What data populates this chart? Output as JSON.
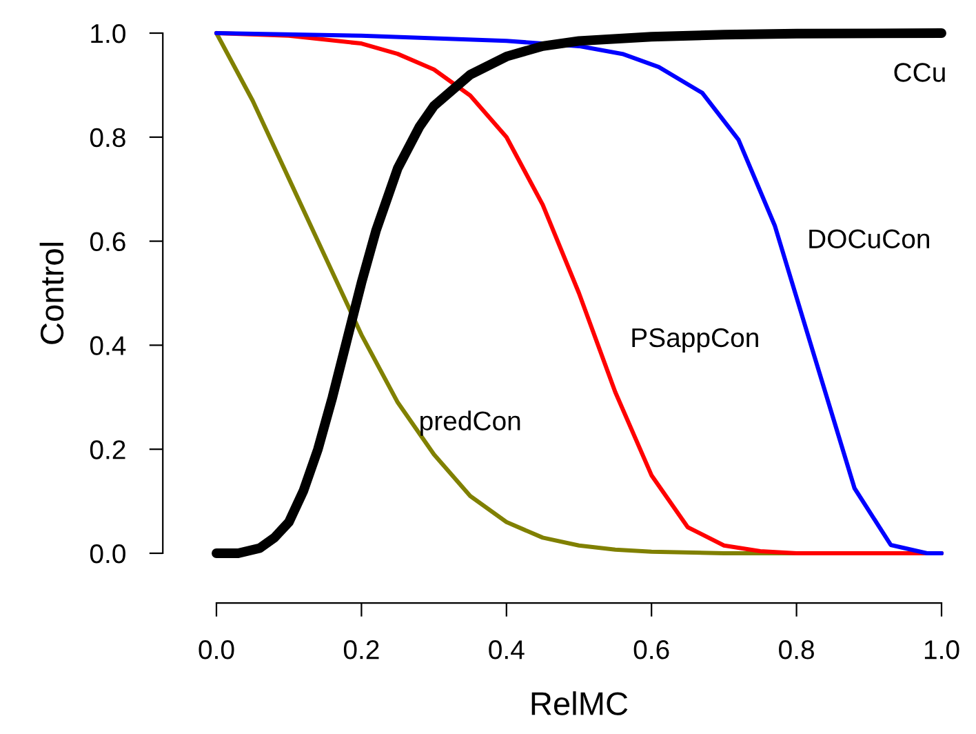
{
  "chart_data": {
    "type": "line",
    "xlabel": "RelMC",
    "ylabel": "Control",
    "xlim": [
      0,
      1
    ],
    "ylim": [
      0,
      1
    ],
    "xticks": [
      {
        "value": 0,
        "label": "0.0"
      },
      {
        "value": 0.2,
        "label": "0.2"
      },
      {
        "value": 0.4,
        "label": "0.4"
      },
      {
        "value": 0.6,
        "label": "0.6"
      },
      {
        "value": 0.8,
        "label": "0.8"
      },
      {
        "value": 1,
        "label": "1.0"
      }
    ],
    "yticks": [
      {
        "value": 0,
        "label": "0.0"
      },
      {
        "value": 0.2,
        "label": "0.2"
      },
      {
        "value": 0.4,
        "label": "0.4"
      },
      {
        "value": 0.6,
        "label": "0.6"
      },
      {
        "value": 0.8,
        "label": "0.8"
      },
      {
        "value": 1,
        "label": "1.0"
      }
    ],
    "grid": false,
    "legend": false,
    "marker": "none",
    "line_style": "solid",
    "series": [
      {
        "name": "CCu",
        "color": "#000000",
        "x": [
          0,
          0.03,
          0.06,
          0.08,
          0.1,
          0.12,
          0.14,
          0.16,
          0.18,
          0.2,
          0.22,
          0.25,
          0.28,
          0.3,
          0.35,
          0.4,
          0.45,
          0.5,
          0.6,
          0.7,
          0.8,
          1.0
        ],
        "values": [
          0,
          0,
          0.01,
          0.03,
          0.06,
          0.12,
          0.2,
          0.3,
          0.41,
          0.52,
          0.62,
          0.74,
          0.82,
          0.86,
          0.92,
          0.955,
          0.975,
          0.985,
          0.993,
          0.997,
          0.999,
          1.0
        ]
      },
      {
        "name": "predCon",
        "color": "#808000",
        "x": [
          0,
          0.05,
          0.1,
          0.15,
          0.2,
          0.25,
          0.3,
          0.35,
          0.4,
          0.45,
          0.5,
          0.55,
          0.6,
          0.7,
          0.8,
          1.0
        ],
        "values": [
          1,
          0.87,
          0.72,
          0.57,
          0.42,
          0.29,
          0.19,
          0.11,
          0.06,
          0.03,
          0.015,
          0.007,
          0.003,
          0,
          0,
          0
        ]
      },
      {
        "name": "PSappCon",
        "color": "#ff0000",
        "x": [
          0,
          0.1,
          0.2,
          0.25,
          0.3,
          0.35,
          0.4,
          0.45,
          0.5,
          0.55,
          0.6,
          0.65,
          0.7,
          0.75,
          0.8,
          1.0
        ],
        "values": [
          1,
          0.995,
          0.98,
          0.96,
          0.93,
          0.88,
          0.8,
          0.67,
          0.5,
          0.31,
          0.15,
          0.05,
          0.015,
          0.004,
          0,
          0
        ]
      },
      {
        "name": "DOCuCon",
        "color": "#0000ff",
        "x": [
          0,
          0.2,
          0.4,
          0.5,
          0.56,
          0.61,
          0.67,
          0.72,
          0.77,
          0.82,
          0.88,
          0.93,
          0.98,
          1.0
        ],
        "values": [
          1,
          0.995,
          0.985,
          0.975,
          0.96,
          0.935,
          0.885,
          0.795,
          0.63,
          0.4,
          0.125,
          0.016,
          0,
          0
        ]
      }
    ]
  }
}
